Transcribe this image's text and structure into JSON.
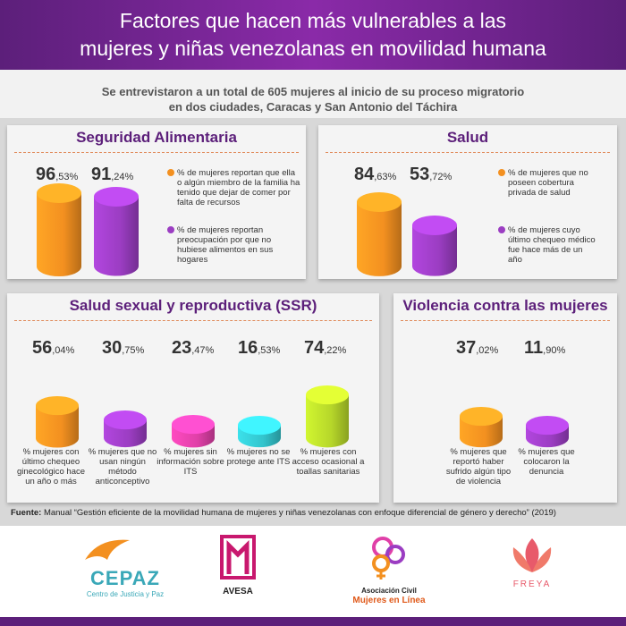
{
  "header": {
    "title_line1": "Factores que hacen más vulnerables a las",
    "title_line2": "mujeres y niñas venezolanas en movilidad humana"
  },
  "intro": {
    "line1": "Se entrevistaron a un total de 605 mujeres al inicio de su proceso migratorio",
    "line2": "en dos ciudades, Caracas y San Antonio del Táchira"
  },
  "colors": {
    "orange": "#f39020",
    "purple": "#9b3dc2",
    "pink": "#e040a8",
    "teal": "#33c4cc",
    "lime": "#b6d62a",
    "brand": "#5c1f7a"
  },
  "chart_data": [
    {
      "type": "bar",
      "title": "Seguridad Alimentaria",
      "categories": [
        "% de mujeres reportan que ella o algún miembro de la familia ha tenido que dejar de comer por falta de recursos",
        "% de mujeres reportan preocupación por que no hubiese alimentos en sus hogares"
      ],
      "values": [
        96.53,
        91.24
      ],
      "labels": [
        {
          "int": "96",
          "dec": ",53%"
        },
        {
          "int": "91",
          "dec": ",24%"
        }
      ],
      "colors": [
        "#f39020",
        "#9b3dc2"
      ]
    },
    {
      "type": "bar",
      "title": "Salud",
      "categories": [
        "% de mujeres que no poseen cobertura privada de salud",
        "% de mujeres cuyo último chequeo médico fue hace más de un año"
      ],
      "values": [
        84.63,
        53.72
      ],
      "labels": [
        {
          "int": "84",
          "dec": ",63%"
        },
        {
          "int": "53",
          "dec": ",72%"
        }
      ],
      "colors": [
        "#f39020",
        "#9b3dc2"
      ]
    },
    {
      "type": "bar",
      "title": "Salud sexual y reproductiva (SSR)",
      "categories": [
        "% mujeres con último chequeo ginecológico hace un año o más",
        "% mujeres que no usan ningún método anticonceptivo",
        "% mujeres sin información sobre ITS",
        "% mujeres no se protege ante ITS",
        "% mujeres con acceso ocasional a toallas sanitarias"
      ],
      "values": [
        56.04,
        30.75,
        23.47,
        16.53,
        74.22
      ],
      "labels": [
        {
          "int": "56",
          "dec": ",04%"
        },
        {
          "int": "30",
          "dec": ",75%"
        },
        {
          "int": "23",
          "dec": ",47%"
        },
        {
          "int": "16",
          "dec": ",53%"
        },
        {
          "int": "74",
          "dec": ",22%"
        }
      ],
      "colors": [
        "#f39020",
        "#9b3dc2",
        "#e040a8",
        "#33c4cc",
        "#b6d62a"
      ]
    },
    {
      "type": "bar",
      "title": "Violencia contra las mujeres",
      "categories": [
        "% mujeres que reportó haber sufrido algún tipo de violencia",
        "% mujeres que colocaron la denuncia"
      ],
      "values": [
        37.02,
        11.9
      ],
      "labels": [
        {
          "int": "37",
          "dec": ",02%"
        },
        {
          "int": "11",
          "dec": ",90%"
        }
      ],
      "colors": [
        "#f39020",
        "#9b3dc2"
      ]
    }
  ],
  "source": {
    "label": "Fuente:",
    "text": " Manual “Gestión eficiente de la movilidad humana de mujeres y niñas venezolanas con enfoque diferencial de género y derecho” (2019)"
  },
  "logos": {
    "cepaz": {
      "name": "CEPAZ",
      "sub": "Centro de Justicia y Paz"
    },
    "avesa": {
      "name": "AVESA"
    },
    "mujeres": {
      "line1": "Asociación Civil",
      "line2": "Mujeres en Línea"
    },
    "freya": {
      "name": "FREYA"
    }
  }
}
